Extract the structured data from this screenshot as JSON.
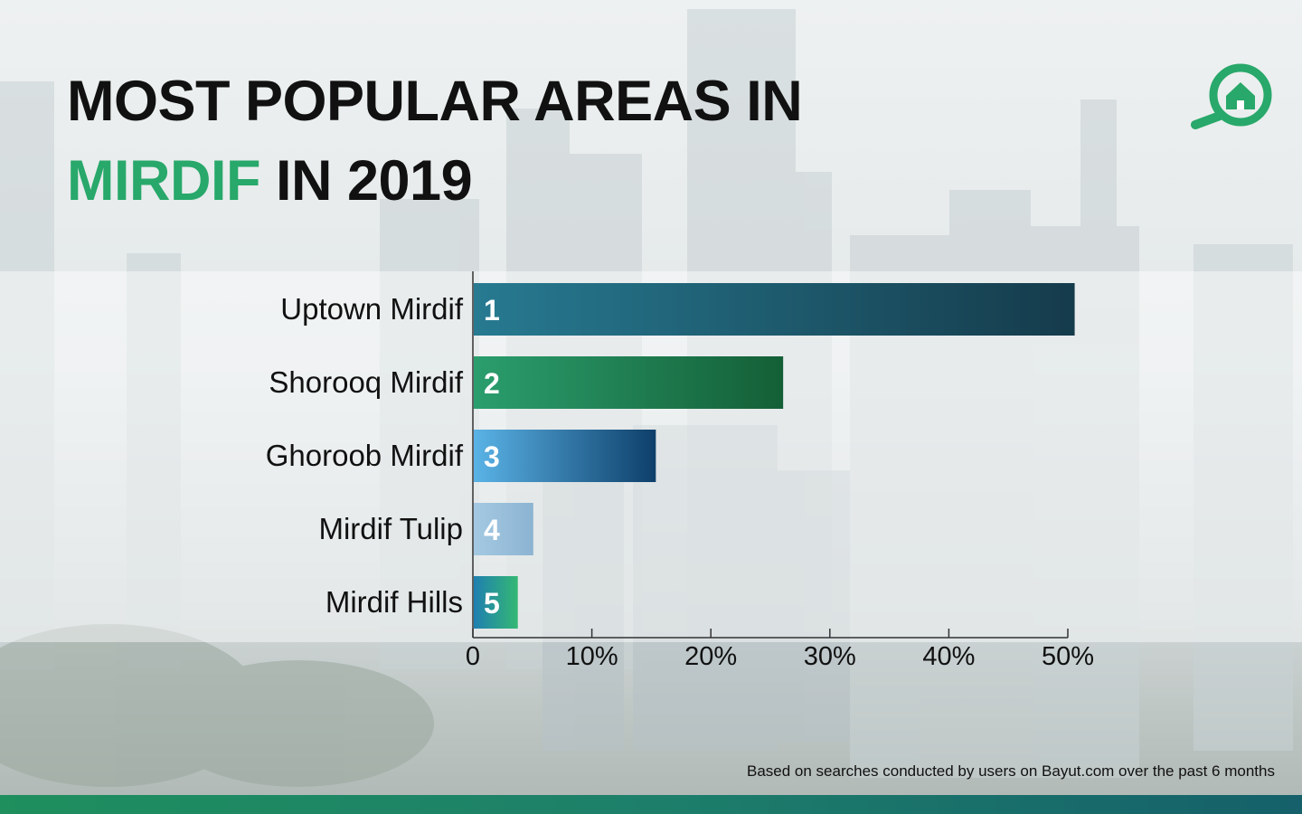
{
  "title": {
    "line1": "MOST POPULAR AREAS IN",
    "accent": "MIRDIF",
    "line2_rest": " IN 2019"
  },
  "footnote": "Based on searches conducted by users on Bayut.com over the past 6 months",
  "colors": {
    "accent": "#28a86a",
    "bottom_bar": "#1d7f6a"
  },
  "logo": {
    "icon": "search-home-icon"
  },
  "chart_data": {
    "type": "bar",
    "orientation": "horizontal",
    "categories": [
      "Uptown Mirdif",
      "Shorooq Mirdif",
      "Ghoroob Mirdif",
      "Mirdif Tulip",
      "Mirdif Hills"
    ],
    "values": [
      50.5,
      26,
      15.3,
      5,
      3.7
    ],
    "ranks": [
      "1",
      "2",
      "3",
      "4",
      "5"
    ],
    "bar_gradients": [
      [
        "#277a91",
        "#153b4b"
      ],
      [
        "#2b9e6e",
        "#145f36"
      ],
      [
        "#5ab3e6",
        "#0e3f6a"
      ],
      [
        "#a4c9e2",
        "#8cb4d2"
      ],
      [
        "#1f7fb0",
        "#34b874"
      ]
    ],
    "xlim": [
      0,
      50
    ],
    "xticks": [
      0,
      10,
      20,
      30,
      40,
      50
    ],
    "xtick_labels": [
      "0",
      "10%",
      "20%",
      "30%",
      "40%",
      "50%"
    ],
    "xlabel": "",
    "ylabel": "",
    "grid": false
  }
}
